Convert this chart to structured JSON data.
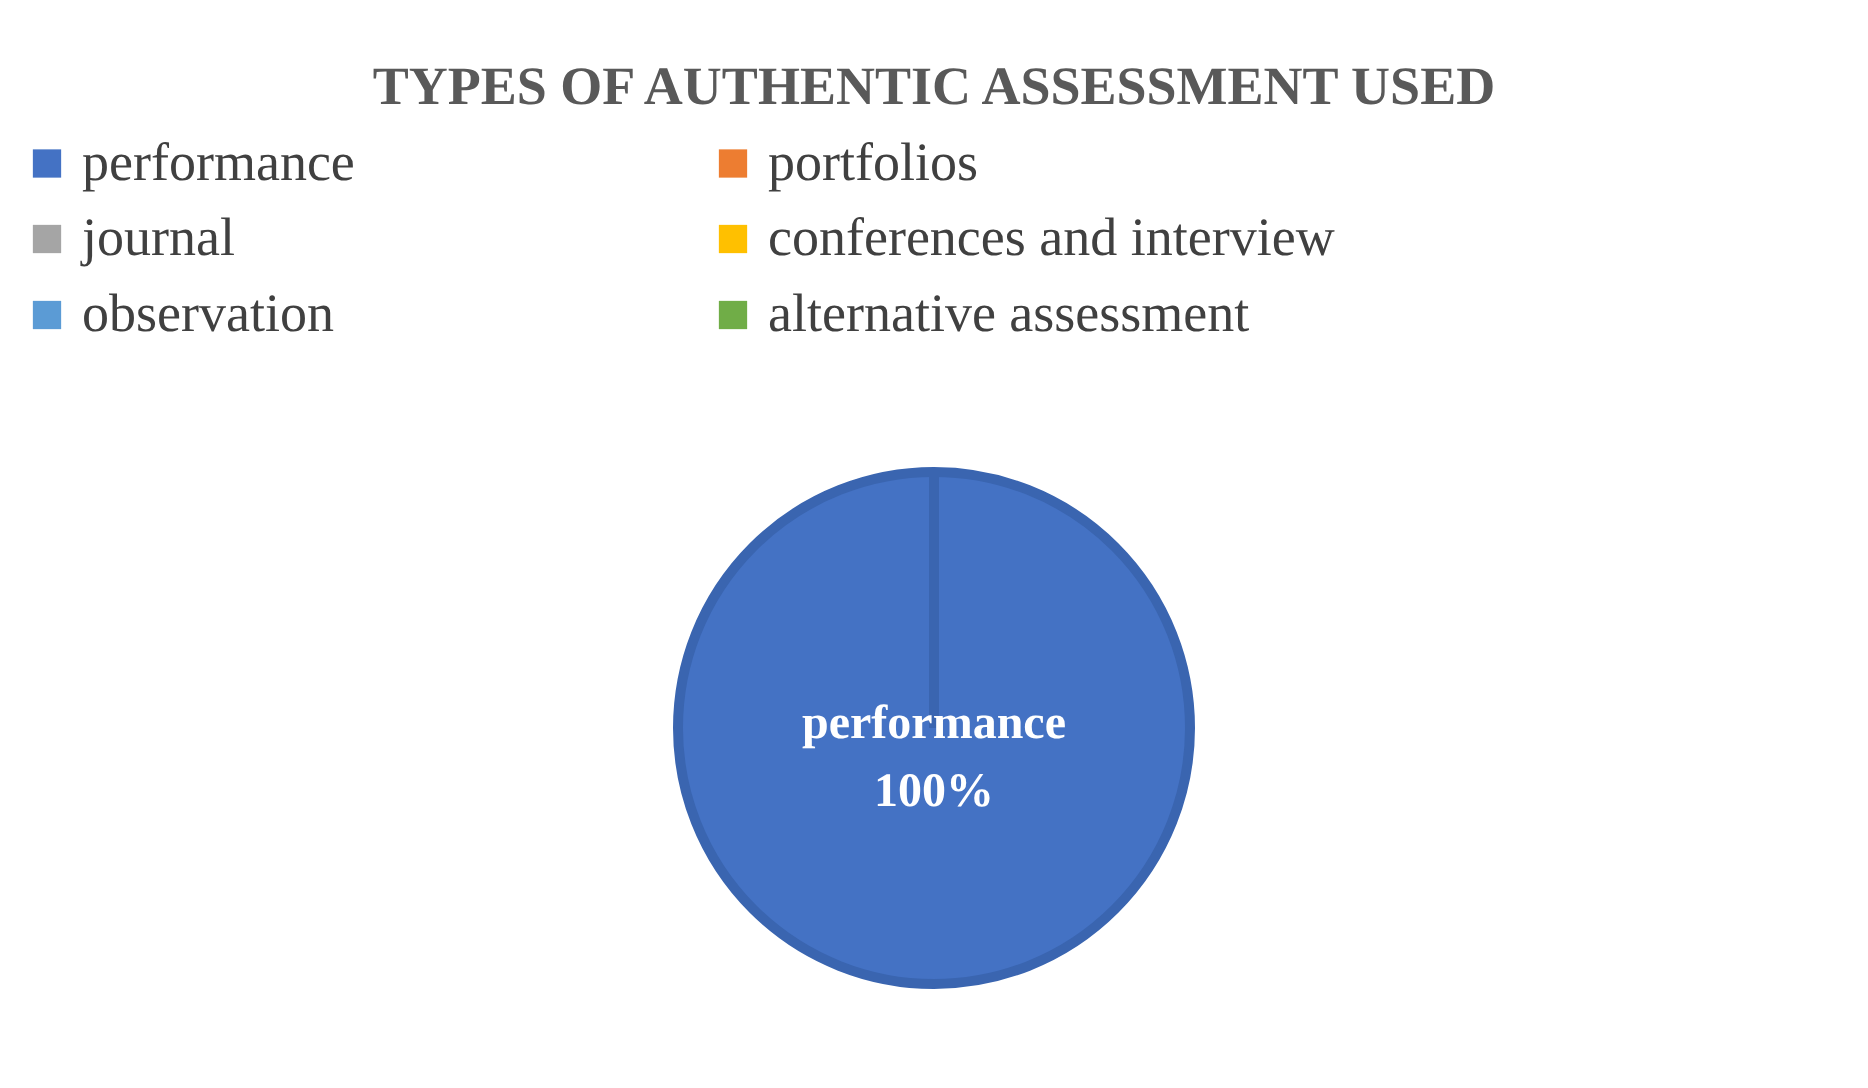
{
  "chart_data": {
    "type": "pie",
    "title": "TYPES OF AUTHENTIC ASSESSMENT USED",
    "categories": [
      "performance",
      "portfolios",
      "journal",
      "conferences and interview",
      "observation",
      "alternative assessment"
    ],
    "values": [
      100,
      0,
      0,
      0,
      0,
      0
    ],
    "colors": [
      "#4472c4",
      "#ed7d31",
      "#a5a5a5",
      "#ffc000",
      "#5b9bd5",
      "#70ad47"
    ],
    "value_labels": [
      "100%",
      null,
      null,
      null,
      null,
      null
    ],
    "legend": "top"
  }
}
